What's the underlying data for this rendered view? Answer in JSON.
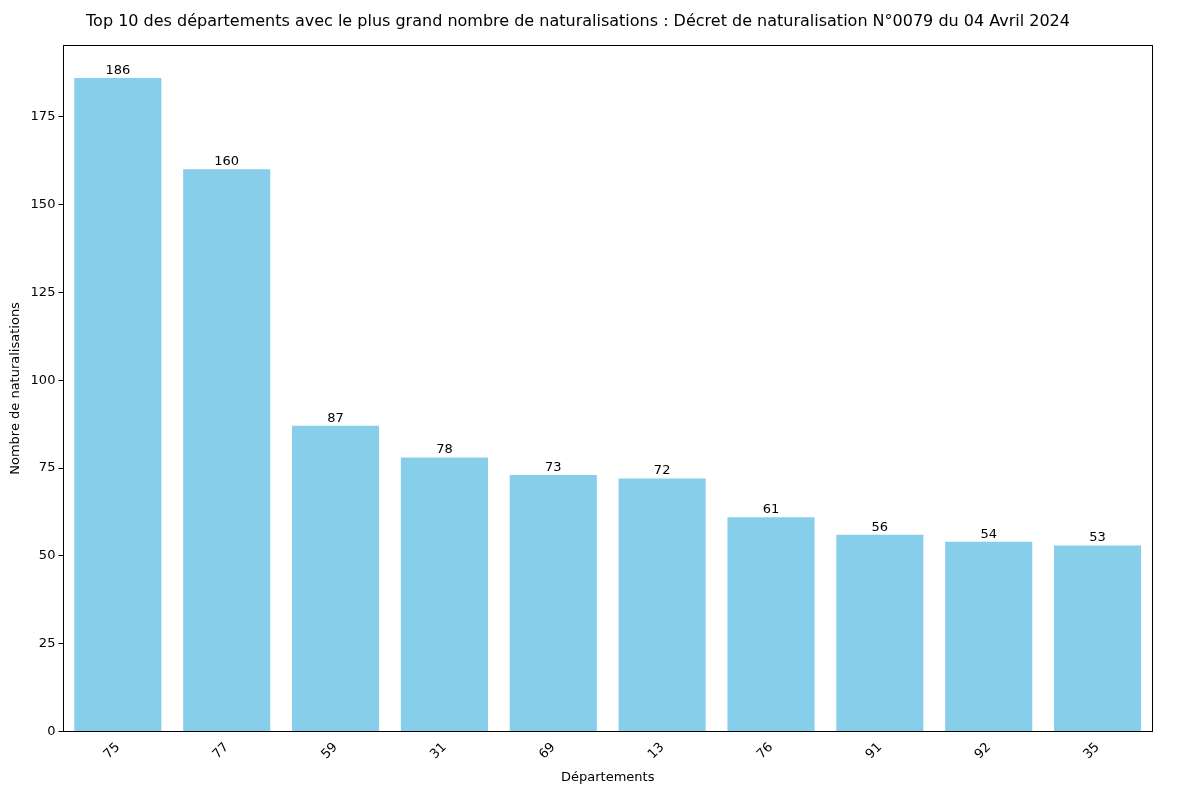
{
  "chart_data": {
    "type": "bar",
    "title": "Top 10 des départements avec le plus grand nombre de naturalisations : Décret de naturalisation N°0079 du 04 Avril 2024",
    "x_label": "Départements",
    "y_label": "Nombre de naturalisations",
    "categories": [
      "75",
      "77",
      "59",
      "31",
      "69",
      "13",
      "76",
      "91",
      "92",
      "35"
    ],
    "values": [
      186,
      160,
      87,
      78,
      73,
      72,
      61,
      56,
      54,
      53
    ],
    "color": "#87ceeb",
    "ylim": [
      0,
      195.3
    ],
    "yticks": [
      0,
      25,
      50,
      75,
      100,
      125,
      150,
      175
    ],
    "grid": false,
    "data_labels": true
  }
}
